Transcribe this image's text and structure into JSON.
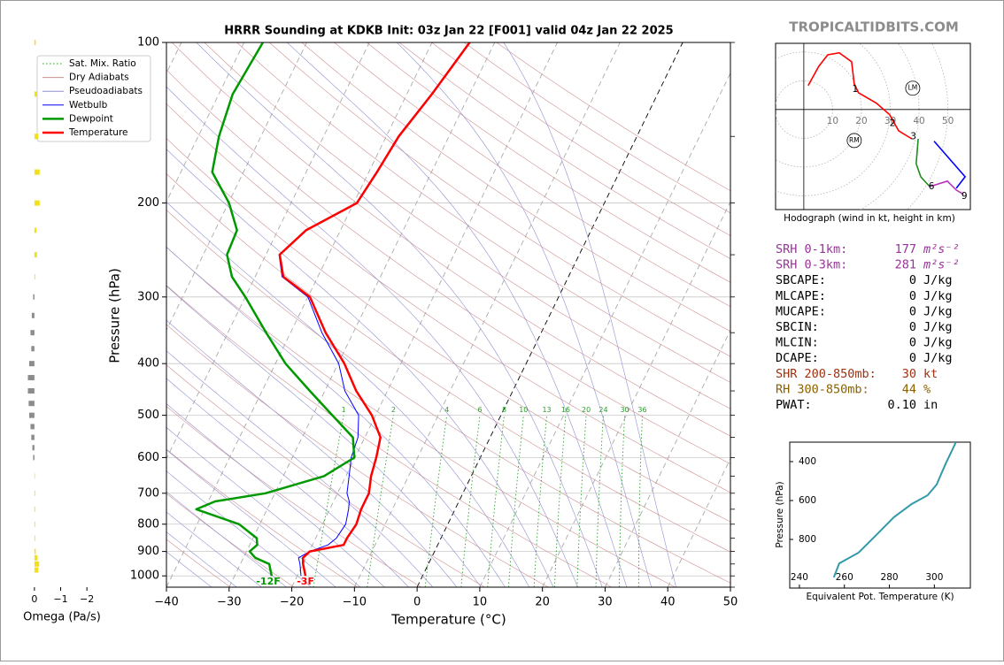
{
  "site": "TROPICALTIDBITS.COM",
  "chart_data": [
    {
      "type": "skewt",
      "title": "HRRR Sounding at KDKB Init: 03z Jan 22 [F001] valid 04z Jan 22 2025",
      "xlabel": "Temperature (°C)",
      "ylabel": "Pressure (hPa)",
      "xlim": [
        -40,
        50
      ],
      "ylim": [
        1050,
        100
      ],
      "log_y": true,
      "xticks": [
        {
          "value": -40,
          "label": "−40"
        },
        {
          "value": -30,
          "label": "−30"
        },
        {
          "value": -20,
          "label": "−20"
        },
        {
          "value": -10,
          "label": "−10"
        },
        0,
        10,
        20,
        30,
        40,
        50
      ],
      "yticks": [
        100,
        200,
        300,
        400,
        500,
        600,
        700,
        800,
        900,
        1000
      ],
      "grid": true,
      "legend": "upper left",
      "pressure": [
        1000,
        950,
        925,
        900,
        875,
        850,
        800,
        750,
        725,
        700,
        650,
        600,
        550,
        500,
        450,
        400,
        350,
        300,
        275,
        250,
        225,
        200,
        175,
        150,
        125,
        100
      ],
      "background_lines": [
        {
          "name": "Sat. Mix. Ratio",
          "color": "#2ca02c",
          "style": "dotted"
        },
        {
          "name": "Dry Adiabats",
          "color": "#d09090",
          "style": "solid"
        },
        {
          "name": "Pseudoadiabats",
          "color": "#8f8fd0",
          "style": "solid"
        }
      ],
      "mixing_ratios": [
        1,
        2,
        4,
        6,
        8,
        10,
        13,
        16,
        20,
        24,
        30,
        36
      ],
      "series": [
        {
          "name": "Wetbulb",
          "color": "#0000ff",
          "width": 1,
          "values": [
            -19.4,
            -20.5,
            -21.2,
            -19.9,
            -17.5,
            -16.7,
            -16.3,
            -17,
            -17.5,
            -18.5,
            -19.5,
            -20.6,
            -21.1,
            -22.7,
            -26.8,
            -29.9,
            -35,
            -40,
            -45.7,
            -47.9,
            -45.6,
            -39.6,
            -38.8,
            -38.1,
            -36.1,
            -34.1
          ]
        },
        {
          "name": "Dewpoint",
          "color": "#009900",
          "width": 2.5,
          "values": [
            -24.1,
            -25.4,
            -28.1,
            -29.5,
            -28.8,
            -29.4,
            -33.3,
            -41.3,
            -38.9,
            -31.5,
            -23.5,
            -20.1,
            -21.9,
            -26.9,
            -32.4,
            -38.4,
            -43.9,
            -50,
            -53.7,
            -56.2,
            -56.5,
            -59.9,
            -65,
            -66.7,
            -67.8,
            -67
          ]
        },
        {
          "name": "Temperature",
          "color": "#ff0000",
          "width": 2.5,
          "values": [
            -18.7,
            -20,
            -20.5,
            -19.9,
            -15,
            -15,
            -14.6,
            -15,
            -15,
            -15,
            -16,
            -16.6,
            -17.5,
            -20.6,
            -25,
            -29,
            -34.4,
            -39.7,
            -45.5,
            -47.8,
            -45.5,
            -39.5,
            -38.7,
            -38,
            -36,
            -34
          ]
        }
      ],
      "surface_labels": [
        {
          "text": "-12F",
          "series": 1
        },
        {
          "text": "-3F",
          "series": 2
        }
      ]
    },
    {
      "type": "omega",
      "xlabel": "Omega (Pa/s)",
      "xlim": [
        0.3,
        -2.4
      ],
      "xticks": [
        0,
        {
          "value": -1,
          "label": "−1"
        },
        {
          "value": -2,
          "label": "−2"
        }
      ],
      "colors": {
        "negative": "#f2e11a",
        "positive": "#8c8c8c"
      },
      "pressure": [
        100,
        125,
        150,
        175,
        200,
        225,
        250,
        275,
        300,
        325,
        350,
        375,
        400,
        425,
        450,
        475,
        500,
        525,
        550,
        575,
        600,
        650,
        700,
        750,
        800,
        850,
        900,
        925,
        950,
        975
      ],
      "values": [
        -0.05,
        -0.1,
        -0.15,
        -0.2,
        -0.2,
        -0.08,
        -0.1,
        -0.03,
        0.05,
        0.1,
        0.15,
        0.12,
        0.2,
        0.25,
        0.25,
        0.22,
        0.2,
        0.15,
        0.12,
        0.08,
        0.05,
        -0.02,
        -0.03,
        -0.03,
        -0.03,
        -0.03,
        -0.05,
        -0.12,
        -0.18,
        -0.15
      ]
    },
    {
      "type": "hodograph",
      "caption": "Hodograph (wind in kt, height in km)",
      "xlim": [
        -9.8,
        57.8
      ],
      "ylim": [
        -34.8,
        23
      ],
      "rings": [
        10,
        20,
        30,
        40,
        50
      ],
      "series": [
        {
          "color": "#ff0000",
          "u": [
            1.5,
            5.2,
            8.3,
            12.3,
            16.6,
            17.5,
            19,
            25.2,
            29.8,
            32.9,
            37.5
          ],
          "v": [
            8.3,
            15,
            19,
            19.7,
            16.6,
            8.9,
            5.8,
            2.2,
            -1.8,
            -7.4,
            -10.2
          ]
        },
        {
          "color": "#228b22",
          "u": [
            39.7,
            39,
            40.6,
            43.7
          ],
          "v": [
            -10.2,
            -18.8,
            -23.4,
            -26.8
          ]
        },
        {
          "color": "#bb33bb",
          "u": [
            43.7,
            49.8,
            52.9,
            55.4
          ],
          "v": [
            -26.8,
            -24.9,
            -28,
            -29.5
          ]
        },
        {
          "color": "#0000ff",
          "u": [
            45.2,
            56,
            52.9
          ],
          "v": [
            -11,
            -23.4,
            -27.4
          ]
        }
      ],
      "height_labels": [
        {
          "height": 1,
          "u": 17.8,
          "v": 7
        },
        {
          "height": 2,
          "u": 30.8,
          "v": -4.9
        },
        {
          "height": 3,
          "u": 38,
          "v": -9.5
        },
        {
          "height": 6,
          "u": 44.3,
          "v": -26.8
        },
        {
          "height": 9,
          "u": 55.7,
          "v": -30.2
        }
      ],
      "storm_motion": [
        {
          "label": "LM",
          "u": 37.8,
          "v": 7.4
        },
        {
          "label": "RM",
          "u": 17.5,
          "v": -10.8
        }
      ]
    },
    {
      "type": "line",
      "xlabel": "Equivalent Pot. Temperature (K)",
      "ylabel": "Pressure (hPa)",
      "xlim": [
        235.7,
        316
      ],
      "ylim": [
        1050,
        300
      ],
      "xticks": [
        240,
        260,
        280,
        300
      ],
      "yticks": [
        400,
        600,
        800
      ],
      "color": "#3399aa",
      "x": [
        255.3,
        257.7,
        266.3,
        274.2,
        282,
        289.9,
        297,
        301,
        304.9,
        309.6
      ],
      "y": [
        995,
        923,
        868,
        777,
        686,
        618,
        573,
        518,
        414,
        300
      ]
    }
  ],
  "parameters": [
    {
      "label": "SRH 0-1km:",
      "value": 177,
      "unit": "m²s⁻²",
      "color": "#993399"
    },
    {
      "label": "SRH 0-3km:",
      "value": 281,
      "unit": "m²s⁻²",
      "color": "#993399"
    },
    {
      "label": "SBCAPE:",
      "value": 0,
      "unit": "J/kg",
      "color": "#000000"
    },
    {
      "label": "MLCAPE:",
      "value": 0,
      "unit": "J/kg",
      "color": "#000000"
    },
    {
      "label": "MUCAPE:",
      "value": 0,
      "unit": "J/kg",
      "color": "#000000"
    },
    {
      "label": "SBCIN:",
      "value": 0,
      "unit": "J/kg",
      "color": "#000000"
    },
    {
      "label": "MLCIN:",
      "value": 0,
      "unit": "J/kg",
      "color": "#000000"
    },
    {
      "label": "DCAPE:",
      "value": 0,
      "unit": "J/kg",
      "color": "#000000"
    },
    {
      "label": "SHR 200-850mb:",
      "value": 30,
      "unit": "kt",
      "color": "#a03010"
    },
    {
      "label": "RH 300-850mb:",
      "value": 44,
      "unit": "%",
      "color": "#8a6000"
    },
    {
      "label": "PWAT:",
      "value": 0.1,
      "value_label": "0.10",
      "unit": "in",
      "color": "#000000"
    }
  ]
}
